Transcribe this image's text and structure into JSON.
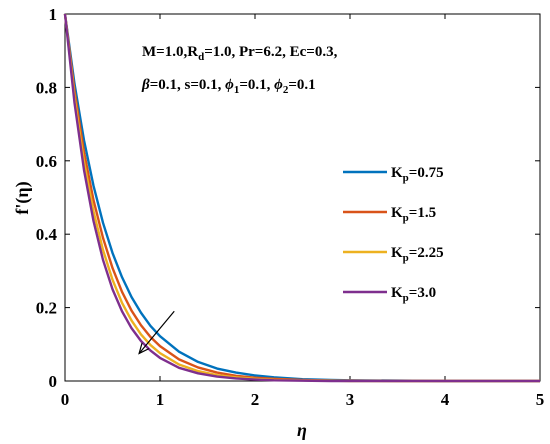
{
  "chart_data": {
    "type": "line",
    "xlabel": "η",
    "ylabel": "f'(η)",
    "xlim": [
      0,
      5
    ],
    "ylim": [
      0,
      1
    ],
    "xticks": [
      0,
      1,
      2,
      3,
      4,
      5
    ],
    "yticks": [
      0,
      0.2,
      0.4,
      0.6,
      0.8,
      1
    ],
    "ytick_labels": [
      "0",
      "0.2",
      "0.4",
      "0.6",
      "0.8",
      "1"
    ],
    "xtick_labels": [
      "0",
      "1",
      "2",
      "3",
      "4",
      "5"
    ],
    "grid": false,
    "legend_position": "center-right",
    "annotation": {
      "line1": {
        "M": "M=1.0,",
        "R": "R",
        "d": "d",
        "rest": "=1.0, Pr=6.2, Ec=0.3,"
      },
      "line2": {
        "beta": "β",
        "beta_rest": "=0.1, s=0.1, ",
        "phi1": "ϕ",
        "sub1": "1",
        "phi1_rest": "=0.1, ",
        "phi2": "ϕ",
        "sub2": "2",
        "phi2_rest": "=0.1"
      }
    },
    "arrow": {
      "from": [
        1.15,
        0.19
      ],
      "to": [
        0.78,
        0.075
      ]
    },
    "series": [
      {
        "name": "K",
        "sub": "p",
        "value": "=0.75",
        "color": "#0072BD",
        "x": [
          0,
          0.1,
          0.2,
          0.3,
          0.4,
          0.5,
          0.6,
          0.7,
          0.8,
          0.9,
          1.0,
          1.2,
          1.4,
          1.6,
          1.8,
          2.0,
          2.2,
          2.5,
          2.8,
          3.0,
          3.5,
          4.0,
          4.5,
          5.0
        ],
        "y": [
          1,
          0.81,
          0.656,
          0.532,
          0.431,
          0.349,
          0.283,
          0.229,
          0.186,
          0.15,
          0.122,
          0.08,
          0.052,
          0.034,
          0.023,
          0.015,
          0.01,
          0.005,
          0.003,
          0.002,
          0.001,
          0,
          0,
          0
        ]
      },
      {
        "name": "K",
        "sub": "p",
        "value": "=1.5",
        "color": "#D95319",
        "x": [
          0,
          0.1,
          0.2,
          0.3,
          0.4,
          0.5,
          0.6,
          0.7,
          0.8,
          0.9,
          1.0,
          1.2,
          1.4,
          1.6,
          1.8,
          2.0,
          2.2,
          2.5,
          2.8,
          3.0,
          3.5,
          4.0,
          4.5,
          5.0
        ],
        "y": [
          1,
          0.79,
          0.624,
          0.493,
          0.39,
          0.308,
          0.243,
          0.192,
          0.152,
          0.12,
          0.095,
          0.059,
          0.037,
          0.023,
          0.014,
          0.009,
          0.006,
          0.003,
          0.001,
          0.001,
          0,
          0,
          0,
          0
        ]
      },
      {
        "name": "K",
        "sub": "p",
        "value": "=2.25",
        "color": "#EDB120",
        "x": [
          0,
          0.1,
          0.2,
          0.3,
          0.4,
          0.5,
          0.6,
          0.7,
          0.8,
          0.9,
          1.0,
          1.2,
          1.4,
          1.6,
          1.8,
          2.0,
          2.2,
          2.5,
          2.8,
          3.0,
          3.5,
          4.0,
          4.5,
          5.0
        ],
        "y": [
          1,
          0.773,
          0.597,
          0.462,
          0.357,
          0.276,
          0.213,
          0.165,
          0.127,
          0.098,
          0.076,
          0.045,
          0.027,
          0.016,
          0.01,
          0.006,
          0.003,
          0.002,
          0.001,
          0,
          0,
          0,
          0,
          0
        ]
      },
      {
        "name": "K",
        "sub": "p",
        "value": "=3.0",
        "color": "#7E2F8E",
        "x": [
          0,
          0.1,
          0.2,
          0.3,
          0.4,
          0.5,
          0.6,
          0.7,
          0.8,
          0.9,
          1.0,
          1.2,
          1.4,
          1.6,
          1.8,
          2.0,
          2.2,
          2.5,
          2.8,
          3.0,
          3.5,
          4.0,
          4.5,
          5.0
        ],
        "y": [
          1,
          0.758,
          0.575,
          0.436,
          0.33,
          0.25,
          0.19,
          0.144,
          0.109,
          0.083,
          0.063,
          0.036,
          0.021,
          0.012,
          0.007,
          0.004,
          0.002,
          0.001,
          0,
          0,
          0,
          0,
          0,
          0
        ]
      }
    ]
  }
}
